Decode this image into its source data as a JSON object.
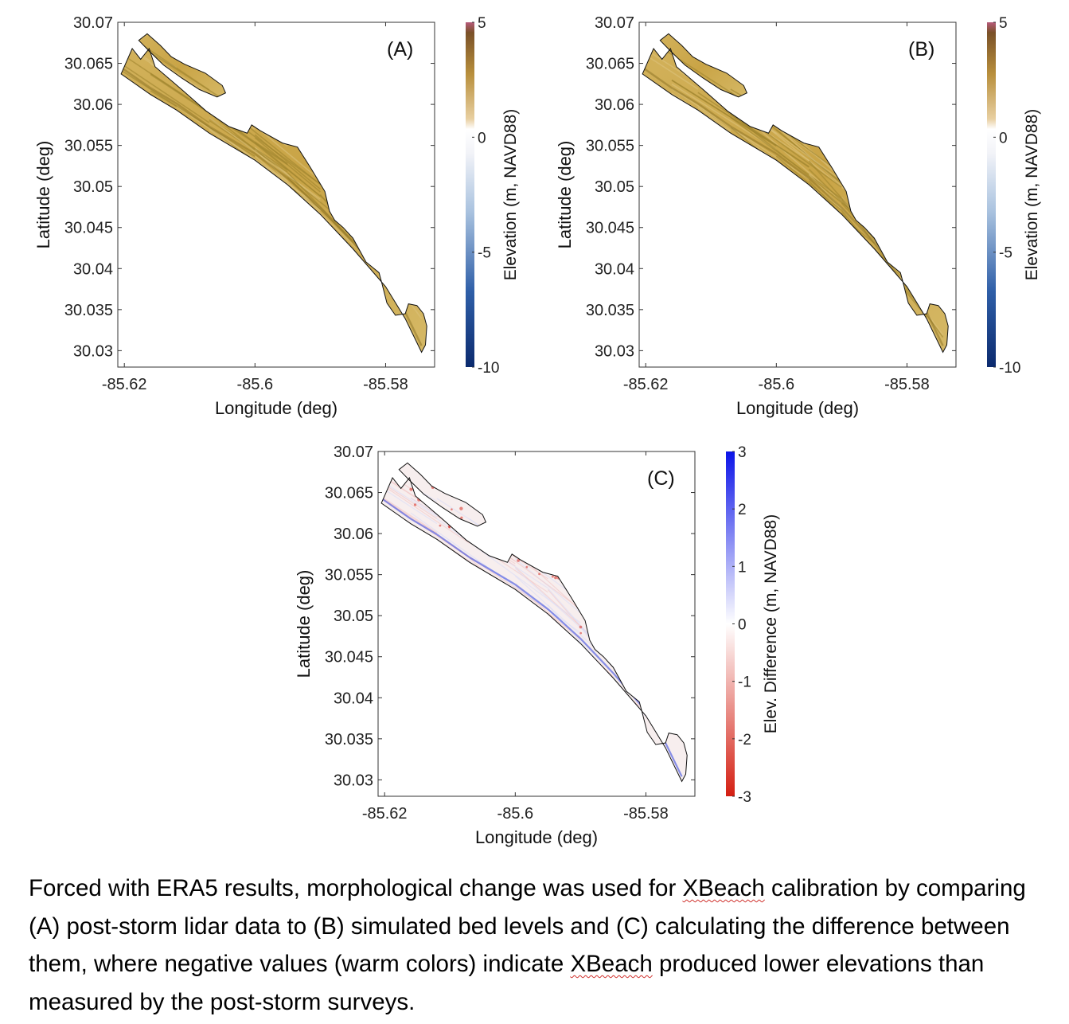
{
  "panels": [
    {
      "id": "A",
      "label": "(A)",
      "colorbar": {
        "label": "Elevation (m, NAVD88)",
        "min": -10,
        "max": 5,
        "ticks": [
          "5",
          "0",
          "-5",
          "-10"
        ],
        "tick_values": [
          5,
          0,
          -5,
          -10
        ]
      }
    },
    {
      "id": "B",
      "label": "(B)",
      "colorbar": {
        "label": "Elevation (m, NAVD88)",
        "min": -10,
        "max": 5,
        "ticks": [
          "5",
          "0",
          "-5",
          "-10"
        ],
        "tick_values": [
          5,
          0,
          -5,
          -10
        ]
      }
    },
    {
      "id": "C",
      "label": "(C)",
      "colorbar": {
        "label": "Elev. Difference (m, NAVD88)",
        "min": -3,
        "max": 3,
        "ticks": [
          "3",
          "2",
          "1",
          "0",
          "-1",
          "-2",
          "-3"
        ],
        "tick_values": [
          3,
          2,
          1,
          0,
          -1,
          -2,
          -3
        ]
      }
    }
  ],
  "chart_data": [
    {
      "type": "heatmap",
      "title": "(A)",
      "xlabel": "Longitude (deg)",
      "ylabel": "Latitude (deg)",
      "xlim": [
        -85.621,
        -85.5725
      ],
      "ylim": [
        30.028,
        30.07
      ],
      "xticks": [
        -85.62,
        -85.6,
        -85.58
      ],
      "xtick_labels": [
        "-85.62",
        "-85.6",
        "-85.58"
      ],
      "yticks": [
        30.07,
        30.065,
        30.06,
        30.055,
        30.05,
        30.045,
        30.04,
        30.035,
        30.03
      ],
      "ytick_labels": [
        "30.07",
        "30.065",
        "30.06",
        "30.055",
        "30.05",
        "30.045",
        "30.04",
        "30.035",
        "30.03"
      ],
      "colorbar_range": [
        -10,
        5
      ],
      "field": "post-storm lidar elevation, mostly 0 to 2 m"
    },
    {
      "type": "heatmap",
      "title": "(B)",
      "xlabel": "Longitude (deg)",
      "ylabel": "Latitude (deg)",
      "xlim": [
        -85.621,
        -85.5725
      ],
      "ylim": [
        30.028,
        30.07
      ],
      "xticks": [
        -85.62,
        -85.6,
        -85.58
      ],
      "xtick_labels": [
        "-85.62",
        "-85.6",
        "-85.58"
      ],
      "yticks": [
        30.07,
        30.065,
        30.06,
        30.055,
        30.05,
        30.045,
        30.04,
        30.035,
        30.03
      ],
      "ytick_labels": [
        "30.07",
        "30.065",
        "30.06",
        "30.055",
        "30.05",
        "30.045",
        "30.04",
        "30.035",
        "30.03"
      ],
      "colorbar_range": [
        -10,
        5
      ],
      "field": "simulated bed levels, mostly 0 to 2 m"
    },
    {
      "type": "heatmap",
      "title": "(C)",
      "xlabel": "Longitude (deg)",
      "ylabel": "Latitude (deg)",
      "xlim": [
        -85.621,
        -85.5725
      ],
      "ylim": [
        30.028,
        30.07
      ],
      "xticks": [
        -85.62,
        -85.6,
        -85.58
      ],
      "xtick_labels": [
        "-85.62",
        "-85.6",
        "-85.58"
      ],
      "yticks": [
        30.07,
        30.065,
        30.06,
        30.055,
        30.05,
        30.045,
        30.04,
        30.035,
        30.03
      ],
      "ytick_labels": [
        "30.07",
        "30.065",
        "30.06",
        "30.055",
        "30.05",
        "30.045",
        "30.04",
        "30.035",
        "30.03"
      ],
      "colorbar_range": [
        -3,
        3
      ],
      "field": "elevation difference, mostly near 0 with scattered +/-1 to 3"
    }
  ],
  "domain_outline": {
    "seaward_edge": [
      [
        -85.6205,
        30.0637
      ],
      [
        -85.616,
        30.0612
      ],
      [
        -85.612,
        30.0593
      ],
      [
        -85.607,
        30.0565
      ],
      [
        -85.6,
        30.0532
      ],
      [
        -85.595,
        30.0502
      ],
      [
        -85.59,
        30.0466
      ],
      [
        -85.585,
        30.0424
      ],
      [
        -85.58,
        30.0378
      ],
      [
        -85.577,
        30.0339
      ],
      [
        -85.5745,
        30.0298
      ]
    ],
    "landward_edge": [
      [
        -85.5739,
        30.0307
      ],
      [
        -85.5737,
        30.033
      ],
      [
        -85.5742,
        30.0345
      ],
      [
        -85.5752,
        30.0355
      ],
      [
        -85.5765,
        30.0357
      ],
      [
        -85.577,
        30.0345
      ],
      [
        -85.5785,
        30.0343
      ],
      [
        -85.5798,
        30.0358
      ],
      [
        -85.5806,
        30.0383
      ],
      [
        -85.581,
        30.0395
      ],
      [
        -85.583,
        30.0408
      ],
      [
        -85.585,
        30.0437
      ],
      [
        -85.5865,
        30.045
      ],
      [
        -85.5878,
        30.0459
      ],
      [
        -85.5886,
        30.047
      ],
      [
        -85.5893,
        30.0494
      ],
      [
        -85.5915,
        30.0523
      ],
      [
        -85.5935,
        30.0548
      ],
      [
        -85.5958,
        30.0553
      ],
      [
        -85.5992,
        30.0568
      ],
      [
        -85.6005,
        30.0575
      ],
      [
        -85.6012,
        30.0565
      ],
      [
        -85.604,
        30.0573
      ],
      [
        -85.6075,
        30.0592
      ],
      [
        -85.6112,
        30.0618
      ],
      [
        -85.6153,
        30.0646
      ],
      [
        -85.6162,
        30.0668
      ],
      [
        -85.6175,
        30.0655
      ],
      [
        -85.6188,
        30.0668
      ]
    ],
    "spit": [
      [
        -85.6165,
        30.0686
      ],
      [
        -85.6145,
        30.0672
      ],
      [
        -85.6128,
        30.0658
      ],
      [
        -85.6108,
        30.0649
      ],
      [
        -85.6076,
        30.0638
      ],
      [
        -85.605,
        30.0623
      ],
      [
        -85.6045,
        30.0614
      ],
      [
        -85.6058,
        30.0609
      ],
      [
        -85.6085,
        30.0618
      ],
      [
        -85.6112,
        30.0632
      ],
      [
        -85.614,
        30.0648
      ],
      [
        -85.6162,
        30.0665
      ],
      [
        -85.6178,
        30.0678
      ]
    ]
  },
  "axis_labels": {
    "x": "Longitude (deg)",
    "y": "Latitude (deg)"
  },
  "caption": {
    "text_before_1": "Forced with ERA5 results, morphological change was used for ",
    "xbeach_1": "XBeach",
    "text_mid": " calibration by comparing (A) post-storm lidar data to (B) simulated bed levels and (C) calculating the difference between them, where negative values (warm colors) indicate ",
    "xbeach_2": "XBeach",
    "text_after": " produced lower elevations than measured by the post-storm surveys."
  },
  "colors": {
    "land": "#c9a84a",
    "land_dark": "#a0862e",
    "diff_bg": "#f7eeee",
    "diff_pos": "#2b3fe0",
    "diff_neg": "#d82a1f",
    "elev_low": "#0d2a6b",
    "elev_high": "#7b4b2a"
  }
}
